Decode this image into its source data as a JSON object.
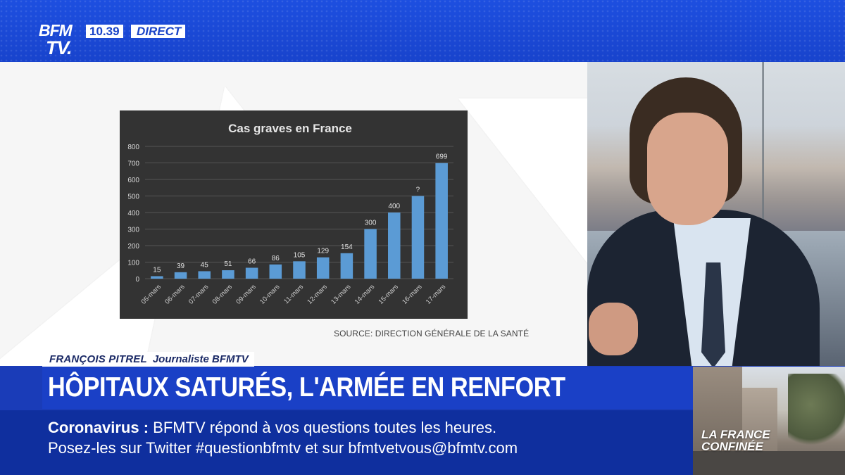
{
  "channel": {
    "logo_line1": "BFM",
    "logo_line2": "TV.",
    "time": "10.39",
    "live_label": "DIRECT"
  },
  "graphic": {
    "source": "SOURCE: DIRECTION GÉNÉRALE DE LA SANTÉ"
  },
  "chart_data": {
    "type": "bar",
    "title": "Cas graves en France",
    "categories": [
      "05-mars",
      "06-mars",
      "07-mars",
      "08-mars",
      "09-mars",
      "10-mars",
      "11-mars",
      "12-mars",
      "13-mars",
      "14-mars",
      "15-mars",
      "16-mars",
      "17-mars"
    ],
    "values": [
      15,
      39,
      45,
      51,
      66,
      86,
      105,
      129,
      154,
      300,
      400,
      500,
      699
    ],
    "data_labels": [
      "15",
      "39",
      "45",
      "51",
      "66",
      "86",
      "105",
      "129",
      "154",
      "300",
      "400",
      "?",
      "699"
    ],
    "ylim": [
      0,
      800
    ],
    "yticks": [
      0,
      100,
      200,
      300,
      400,
      500,
      600,
      700,
      800
    ],
    "grid": true,
    "bar_color": "#5b9bd5",
    "background": "#333333"
  },
  "strap": {
    "name": "FRANÇOIS PITREL",
    "role": "Journaliste BFMTV"
  },
  "headline": "HÔPITAUX SATURÉS, L'ARMÉE EN RENFORT",
  "ticker": {
    "topic": "Coronavirus  :",
    "line1": " BFMTV répond à vos questions toutes les heures.",
    "line2": "Posez-les sur Twitter #questionbfmtv et sur bfmtvetvous@bfmtv.com"
  },
  "inset": {
    "line1": "LA FRANCE",
    "line2": "CONFINÉE"
  },
  "colors": {
    "brand_blue": "#1a40c6",
    "ticker_blue": "#0f2f9e"
  }
}
